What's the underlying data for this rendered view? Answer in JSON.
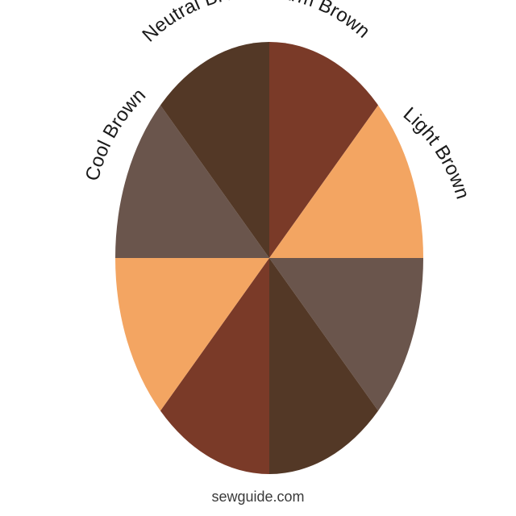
{
  "wheel": {
    "segments": [
      {
        "name": "warm-brown",
        "color": "#7a3a28"
      },
      {
        "name": "light-brown",
        "color": "#f3a562"
      },
      {
        "name": "cool-brown",
        "color": "#6a554c"
      },
      {
        "name": "neutral-brown",
        "color": "#533826"
      },
      {
        "name": "warm-brown",
        "color": "#7a3a28"
      },
      {
        "name": "light-brown",
        "color": "#f3a562"
      },
      {
        "name": "cool-brown",
        "color": "#6a554c"
      },
      {
        "name": "neutral-brown",
        "color": "#533826"
      }
    ],
    "labels": {
      "neutral": "Neutral Brown",
      "warm": "Warm Brown",
      "light": "Light Brown",
      "cool": "Cool Brown"
    }
  },
  "credit": "sewguide.com"
}
